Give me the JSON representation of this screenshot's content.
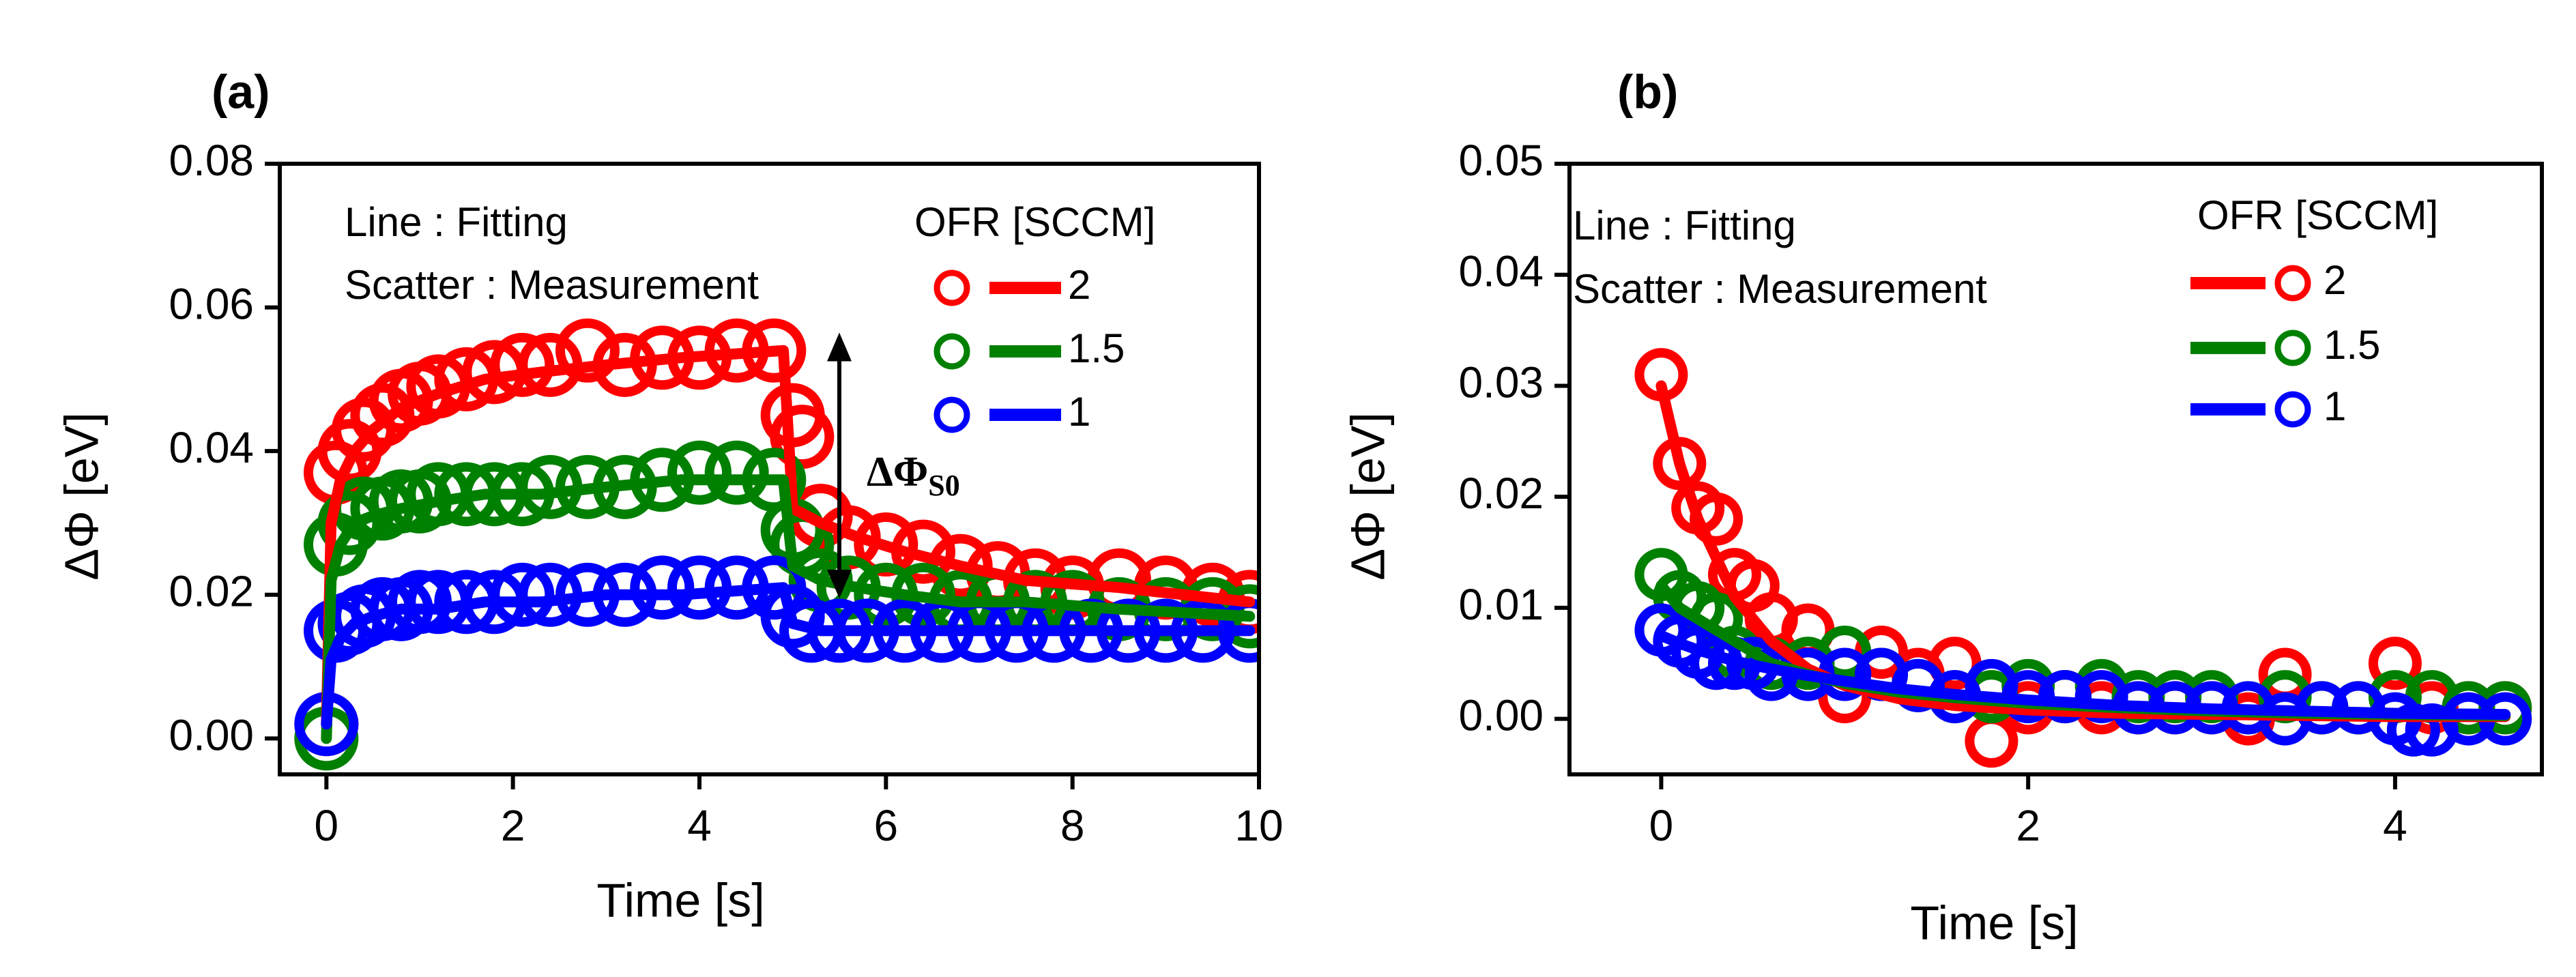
{
  "chart_data": [
    {
      "type": "scatter",
      "panel_label": "(a)",
      "xlabel": "Time [s]",
      "ylabel": "ΔΦ [eV]",
      "xlim": [
        -0.5,
        10
      ],
      "ylim": [
        -0.005,
        0.08
      ],
      "xticks": [
        "0",
        "2",
        "4",
        "6",
        "8",
        "10"
      ],
      "yticks": [
        "0.00",
        "0.02",
        "0.04",
        "0.06",
        "0.08"
      ],
      "notes": [
        "Line : Fitting",
        "Scatter : Measurement"
      ],
      "legend_title": "OFR [SCCM]",
      "annotation": {
        "text": "ΔΦ",
        "subscript": "S0",
        "x": 5.5,
        "y_top": 0.0565,
        "y_bottom": 0.0195
      },
      "series": [
        {
          "name": "2",
          "color": "#ff0000",
          "x": [
            0,
            0.1,
            0.25,
            0.4,
            0.6,
            0.8,
            1.0,
            1.2,
            1.5,
            1.8,
            2.1,
            2.4,
            2.8,
            3.2,
            3.6,
            4.0,
            4.4,
            4.8,
            5.0,
            5.1,
            5.3,
            5.6,
            6.0,
            6.4,
            6.8,
            7.2,
            7.6,
            8.0,
            8.5,
            9.0,
            9.5,
            9.9
          ],
          "y": [
            0.002,
            0.037,
            0.04,
            0.043,
            0.045,
            0.047,
            0.048,
            0.049,
            0.05,
            0.051,
            0.052,
            0.052,
            0.054,
            0.052,
            0.053,
            0.053,
            0.054,
            0.054,
            0.045,
            0.042,
            0.031,
            0.028,
            0.027,
            0.026,
            0.024,
            0.023,
            0.022,
            0.021,
            0.022,
            0.021,
            0.02,
            0.019
          ],
          "fit_x": [
            0,
            0.05,
            0.15,
            0.3,
            0.5,
            0.8,
            1.2,
            1.7,
            2.3,
            3.0,
            3.8,
            4.9,
            5.0,
            5.3,
            5.7,
            6.2,
            6.8,
            7.5,
            8.5,
            9.9
          ],
          "fit_y": [
            0.002,
            0.03,
            0.036,
            0.04,
            0.043,
            0.046,
            0.048,
            0.05,
            0.051,
            0.052,
            0.053,
            0.054,
            0.032,
            0.03,
            0.028,
            0.026,
            0.024,
            0.022,
            0.021,
            0.019
          ]
        },
        {
          "name": "1.5",
          "color": "#008000",
          "x": [
            0,
            0.1,
            0.25,
            0.4,
            0.6,
            0.8,
            1.0,
            1.2,
            1.5,
            1.8,
            2.1,
            2.4,
            2.8,
            3.2,
            3.6,
            4.0,
            4.4,
            4.8,
            5.0,
            5.1,
            5.3,
            5.6,
            6.0,
            6.4,
            6.8,
            7.2,
            7.6,
            8.0,
            8.5,
            9.0,
            9.5,
            9.9
          ],
          "y": [
            0.0,
            0.027,
            0.03,
            0.032,
            0.032,
            0.033,
            0.033,
            0.034,
            0.034,
            0.034,
            0.034,
            0.035,
            0.035,
            0.035,
            0.036,
            0.037,
            0.037,
            0.036,
            0.029,
            0.027,
            0.022,
            0.021,
            0.02,
            0.02,
            0.019,
            0.019,
            0.019,
            0.019,
            0.018,
            0.018,
            0.018,
            0.017
          ],
          "fit_x": [
            0,
            0.05,
            0.15,
            0.3,
            0.5,
            0.8,
            1.2,
            1.7,
            2.3,
            3.0,
            3.8,
            4.9,
            5.0,
            5.3,
            5.7,
            6.2,
            6.8,
            7.5,
            8.5,
            9.9
          ],
          "fit_y": [
            0.0,
            0.022,
            0.027,
            0.03,
            0.031,
            0.032,
            0.033,
            0.034,
            0.034,
            0.035,
            0.036,
            0.036,
            0.024,
            0.022,
            0.021,
            0.02,
            0.019,
            0.019,
            0.018,
            0.017
          ]
        },
        {
          "name": "1",
          "color": "#0000ff",
          "x": [
            0,
            0.1,
            0.25,
            0.4,
            0.6,
            0.8,
            1.0,
            1.2,
            1.5,
            1.8,
            2.1,
            2.4,
            2.8,
            3.2,
            3.6,
            4.0,
            4.4,
            4.8,
            5.0,
            5.2,
            5.5,
            5.8,
            6.2,
            6.6,
            7.0,
            7.4,
            7.8,
            8.2,
            8.6,
            9.0,
            9.4,
            9.9
          ],
          "y": [
            0.002,
            0.015,
            0.016,
            0.017,
            0.018,
            0.018,
            0.019,
            0.019,
            0.019,
            0.019,
            0.02,
            0.02,
            0.02,
            0.02,
            0.021,
            0.021,
            0.021,
            0.021,
            0.017,
            0.015,
            0.015,
            0.015,
            0.015,
            0.015,
            0.015,
            0.015,
            0.015,
            0.015,
            0.015,
            0.015,
            0.015,
            0.015
          ],
          "fit_x": [
            0,
            0.05,
            0.15,
            0.3,
            0.5,
            0.8,
            1.2,
            1.7,
            2.3,
            3.0,
            3.8,
            4.9,
            5.0,
            5.3,
            5.7,
            6.2,
            6.8,
            7.5,
            8.5,
            9.9
          ],
          "fit_y": [
            0.002,
            0.011,
            0.014,
            0.016,
            0.017,
            0.018,
            0.018,
            0.019,
            0.019,
            0.02,
            0.02,
            0.021,
            0.016,
            0.015,
            0.015,
            0.015,
            0.015,
            0.015,
            0.015,
            0.015
          ]
        }
      ]
    },
    {
      "type": "scatter",
      "panel_label": "(b)",
      "xlabel": "Time [s]",
      "ylabel": "ΔΦ [eV]",
      "xlim": [
        -0.5,
        4.8
      ],
      "ylim": [
        -0.005,
        0.05
      ],
      "xticks": [
        "0",
        "2",
        "4"
      ],
      "yticks": [
        "0.00",
        "0.01",
        "0.02",
        "0.03",
        "0.04",
        "0.05"
      ],
      "notes": [
        "Line : Fitting",
        "Scatter : Measurement"
      ],
      "legend_title": "OFR [SCCM]",
      "series": [
        {
          "name": "2",
          "color": "#ff0000",
          "x": [
            0,
            0.1,
            0.2,
            0.3,
            0.4,
            0.5,
            0.6,
            0.8,
            1.0,
            1.2,
            1.4,
            1.6,
            1.8,
            2.0,
            2.2,
            2.4,
            2.6,
            2.8,
            3.0,
            3.2,
            3.4,
            3.6,
            3.8,
            4.0,
            4.2,
            4.4,
            4.6
          ],
          "y": [
            0.031,
            0.023,
            0.019,
            0.018,
            0.013,
            0.012,
            0.009,
            0.008,
            0.002,
            0.006,
            0.004,
            0.005,
            -0.002,
            0.001,
            0.002,
            0.001,
            0.001,
            0.001,
            0.001,
            0.0,
            0.004,
            0.001,
            0.001,
            0.005,
            0.001,
            0.001,
            0.001
          ],
          "fit_x": [
            0,
            0.1,
            0.2,
            0.4,
            0.6,
            0.8,
            1.0,
            1.3,
            1.6,
            2.0,
            2.5,
            3.0,
            3.5,
            4.0,
            4.6
          ],
          "fit_y": [
            0.03,
            0.023,
            0.018,
            0.011,
            0.007,
            0.0045,
            0.003,
            0.0018,
            0.0012,
            0.0008,
            0.0005,
            0.0004,
            0.0003,
            0.0002,
            0.0002
          ]
        },
        {
          "name": "1.5",
          "color": "#008000",
          "x": [
            0,
            0.1,
            0.2,
            0.3,
            0.4,
            0.5,
            0.6,
            0.8,
            1.0,
            1.2,
            1.4,
            1.6,
            1.8,
            2.0,
            2.2,
            2.4,
            2.6,
            2.8,
            3.0,
            3.2,
            3.4,
            3.6,
            3.8,
            4.0,
            4.2,
            4.4,
            4.6
          ],
          "y": [
            0.013,
            0.011,
            0.01,
            0.009,
            0.006,
            0.005,
            0.005,
            0.005,
            0.006,
            0.004,
            0.003,
            0.002,
            0.002,
            0.003,
            0.002,
            0.003,
            0.002,
            0.002,
            0.002,
            0.001,
            0.002,
            0.001,
            0.001,
            0.002,
            0.002,
            0.001,
            0.001
          ],
          "fit_x": [
            0,
            0.1,
            0.2,
            0.4,
            0.6,
            0.8,
            1.0,
            1.3,
            1.6,
            2.0,
            2.5,
            3.0,
            3.5,
            4.0,
            4.6
          ],
          "fit_y": [
            0.012,
            0.01,
            0.009,
            0.007,
            0.005,
            0.004,
            0.0032,
            0.0024,
            0.0019,
            0.0014,
            0.001,
            0.0007,
            0.0005,
            0.0004,
            0.0003
          ]
        },
        {
          "name": "1",
          "color": "#0000ff",
          "x": [
            0,
            0.1,
            0.2,
            0.3,
            0.4,
            0.5,
            0.6,
            0.8,
            1.0,
            1.2,
            1.4,
            1.6,
            1.8,
            2.0,
            2.2,
            2.4,
            2.6,
            2.8,
            3.0,
            3.2,
            3.4,
            3.6,
            3.8,
            4.0,
            4.1,
            4.2,
            4.4,
            4.6
          ],
          "y": [
            0.008,
            0.007,
            0.006,
            0.005,
            0.005,
            0.005,
            0.004,
            0.004,
            0.004,
            0.004,
            0.003,
            0.002,
            0.003,
            0.002,
            0.002,
            0.002,
            0.001,
            0.001,
            0.001,
            0.001,
            0.0,
            0.001,
            0.001,
            0.0,
            -0.001,
            -0.001,
            0.0,
            0.0
          ],
          "fit_x": [
            0,
            0.1,
            0.2,
            0.4,
            0.6,
            0.8,
            1.0,
            1.3,
            1.6,
            2.0,
            2.5,
            3.0,
            3.5,
            4.0,
            4.6
          ],
          "fit_y": [
            0.0075,
            0.0068,
            0.0062,
            0.0052,
            0.0045,
            0.0039,
            0.0034,
            0.0027,
            0.0022,
            0.0017,
            0.0012,
            0.0009,
            0.0007,
            0.0005,
            0.0004
          ]
        }
      ]
    }
  ]
}
